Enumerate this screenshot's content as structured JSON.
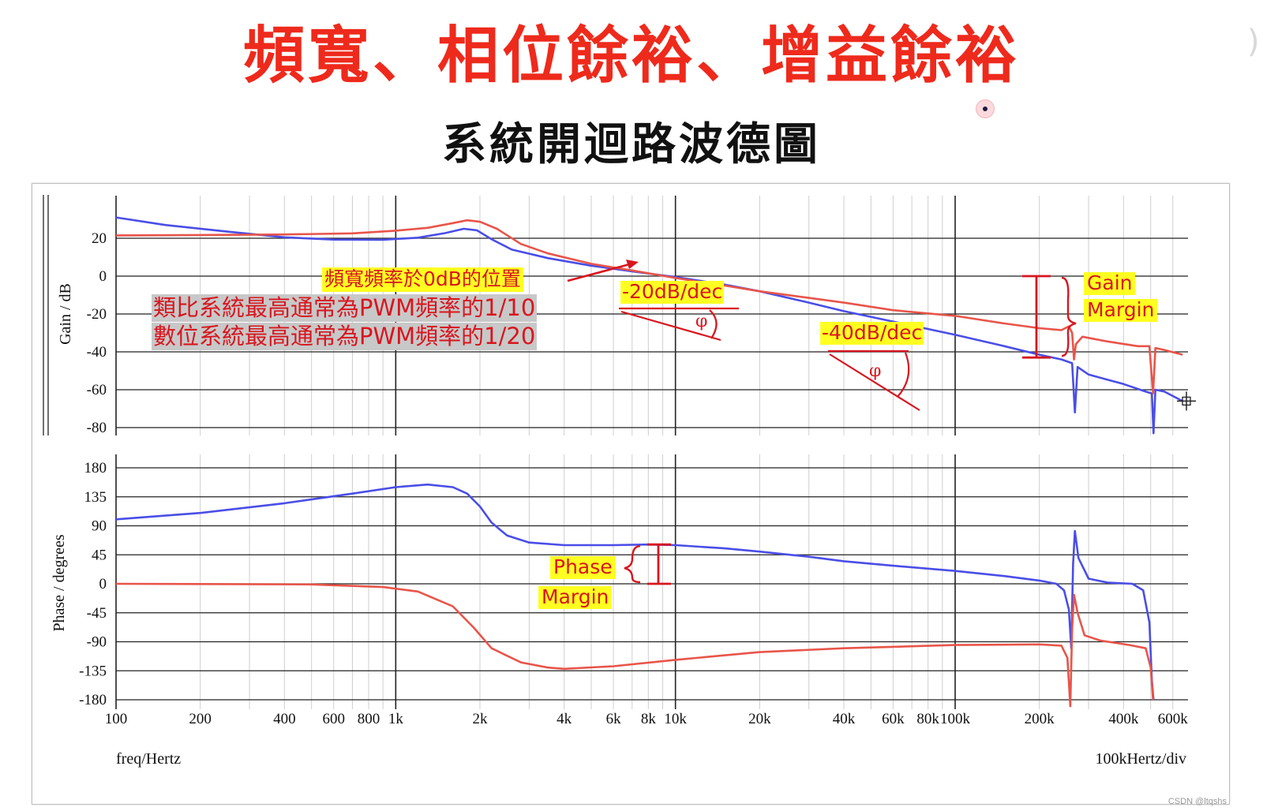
{
  "header": {
    "title": "頻寬、相位餘裕、增益餘裕",
    "subtitle": "系統開迴路波德圖"
  },
  "colors": {
    "title": "#ee2a1c",
    "blue_series": "#4a4ee6",
    "red_series": "#e8554a",
    "annotation": "#d8161f",
    "highlight": "#ffff22"
  },
  "annotations": {
    "bandwidth": "頻寬頻率於0dB的位置",
    "analog_note": "類比系統最高通常為PWM頻率的1/10",
    "digital_note": "數位系統最高通常為PWM頻率的1/20",
    "slope_20": "-20dB/dec",
    "slope_40": "-40dB/dec",
    "phi": "φ",
    "gain_margin_1": "Gain",
    "gain_margin_2": "Margin",
    "phase_margin_1": "Phase",
    "phase_margin_2": "Margin"
  },
  "footer": {
    "freq_label": "freq/Hertz",
    "div_label": "100kHertz/div"
  },
  "watermark": "CSDN @ltqshs",
  "chart_data": [
    {
      "type": "line",
      "panel": "gain",
      "ylabel": "Gain / dB",
      "ylim": [
        -80,
        30
      ],
      "y_ticks": [
        20,
        0,
        -20,
        -40,
        -60,
        -80
      ],
      "x_scale": "log",
      "xlim": [
        100,
        680000
      ],
      "series": [
        {
          "color": "blue",
          "points": [
            [
              100,
              31
            ],
            [
              150,
              27
            ],
            [
              250,
              23.5
            ],
            [
              400,
              20.5
            ],
            [
              600,
              19.3
            ],
            [
              900,
              19.2
            ],
            [
              1200,
              20.3
            ],
            [
              1500,
              22.7
            ],
            [
              1750,
              25
            ],
            [
              1950,
              24.2
            ],
            [
              2200,
              19.5
            ],
            [
              2600,
              14
            ],
            [
              3500,
              9.5
            ],
            [
              5000,
              5.5
            ],
            [
              7000,
              2.5
            ],
            [
              10000,
              -0.5
            ],
            [
              15000,
              -4.5
            ],
            [
              20000,
              -8
            ],
            [
              30000,
              -14
            ],
            [
              40000,
              -18.5
            ],
            [
              60000,
              -24
            ],
            [
              100000,
              -31
            ],
            [
              150000,
              -37
            ],
            [
              200000,
              -41.5
            ],
            [
              240000,
              -44
            ],
            [
              262000,
              -46
            ],
            [
              268000,
              -72
            ],
            [
              274000,
              -48
            ],
            [
              300000,
              -52
            ],
            [
              400000,
              -57
            ],
            [
              480000,
              -61
            ],
            [
              505000,
              -62
            ],
            [
              512000,
              -83
            ],
            [
              520000,
              -60
            ],
            [
              560000,
              -61
            ],
            [
              650000,
              -66
            ]
          ]
        },
        {
          "color": "red",
          "points": [
            [
              100,
              21.5
            ],
            [
              200,
              21.7
            ],
            [
              400,
              22
            ],
            [
              700,
              22.6
            ],
            [
              1000,
              24
            ],
            [
              1300,
              25.5
            ],
            [
              1600,
              28
            ],
            [
              1800,
              29.5
            ],
            [
              2000,
              28.7
            ],
            [
              2300,
              25
            ],
            [
              2800,
              17
            ],
            [
              3500,
              12
            ],
            [
              5000,
              6.5
            ],
            [
              7000,
              3
            ],
            [
              10000,
              -1
            ],
            [
              15000,
              -5
            ],
            [
              20000,
              -8
            ],
            [
              30000,
              -11.5
            ],
            [
              40000,
              -14
            ],
            [
              60000,
              -18
            ],
            [
              100000,
              -21
            ],
            [
              150000,
              -25
            ],
            [
              200000,
              -27.5
            ],
            [
              240000,
              -28.5
            ],
            [
              255000,
              -26.5
            ],
            [
              262000,
              -30
            ],
            [
              266000,
              -44
            ],
            [
              270000,
              -36
            ],
            [
              285000,
              -32
            ],
            [
              350000,
              -34.5
            ],
            [
              450000,
              -37
            ],
            [
              495000,
              -37
            ],
            [
              510000,
              -62
            ],
            [
              520000,
              -38
            ],
            [
              560000,
              -39
            ],
            [
              650000,
              -41.5
            ]
          ]
        }
      ]
    },
    {
      "type": "line",
      "panel": "phase",
      "ylabel": "Phase / degrees",
      "ylim": [
        -180,
        180
      ],
      "y_ticks": [
        180,
        135,
        90,
        45,
        0,
        -45,
        -90,
        -135,
        -180
      ],
      "x_scale": "log",
      "xlim": [
        100,
        680000
      ],
      "x_tick_labels": [
        "100",
        "200",
        "400",
        "600",
        "800",
        "1k",
        "2k",
        "4k",
        "6k",
        "8k",
        "10k",
        "20k",
        "40k",
        "60k",
        "80k",
        "100k",
        "200k",
        "400k",
        "600k"
      ],
      "x_tick_values": [
        100,
        200,
        400,
        600,
        800,
        1000,
        2000,
        4000,
        6000,
        8000,
        10000,
        20000,
        40000,
        60000,
        80000,
        100000,
        200000,
        400000,
        600000
      ],
      "series": [
        {
          "color": "blue",
          "points": [
            [
              100,
              100
            ],
            [
              200,
              110
            ],
            [
              400,
              125
            ],
            [
              700,
              140
            ],
            [
              1000,
              150
            ],
            [
              1300,
              154
            ],
            [
              1600,
              150
            ],
            [
              1800,
              140
            ],
            [
              2000,
              120
            ],
            [
              2200,
              95
            ],
            [
              2500,
              75
            ],
            [
              3000,
              64
            ],
            [
              4000,
              60
            ],
            [
              6000,
              60
            ],
            [
              8000,
              61
            ],
            [
              10000,
              60
            ],
            [
              15000,
              55
            ],
            [
              20000,
              50
            ],
            [
              30000,
              42
            ],
            [
              40000,
              35
            ],
            [
              60000,
              28
            ],
            [
              100000,
              20
            ],
            [
              150000,
              12
            ],
            [
              200000,
              5
            ],
            [
              230000,
              0
            ],
            [
              245000,
              -10
            ],
            [
              255000,
              -40
            ],
            [
              260000,
              -100
            ],
            [
              264000,
              30
            ],
            [
              268000,
              82
            ],
            [
              276000,
              40
            ],
            [
              300000,
              8
            ],
            [
              350000,
              2
            ],
            [
              430000,
              0
            ],
            [
              470000,
              -10
            ],
            [
              495000,
              -60
            ],
            [
              505000,
              -150
            ],
            [
              512000,
              -180
            ]
          ]
        },
        {
          "color": "red",
          "points": [
            [
              100,
              0
            ],
            [
              500,
              -1
            ],
            [
              900,
              -5
            ],
            [
              1200,
              -12
            ],
            [
              1600,
              -35
            ],
            [
              1900,
              -68
            ],
            [
              2200,
              -100
            ],
            [
              2800,
              -122
            ],
            [
              3500,
              -130
            ],
            [
              4000,
              -132
            ],
            [
              6000,
              -128
            ],
            [
              10000,
              -118
            ],
            [
              20000,
              -106
            ],
            [
              40000,
              -100
            ],
            [
              100000,
              -95
            ],
            [
              200000,
              -94
            ],
            [
              240000,
              -96
            ],
            [
              252000,
              -115
            ],
            [
              258000,
              -190
            ],
            [
              262000,
              -70
            ],
            [
              266000,
              -17
            ],
            [
              274000,
              -45
            ],
            [
              290000,
              -80
            ],
            [
              330000,
              -88
            ],
            [
              420000,
              -95
            ],
            [
              480000,
              -100
            ],
            [
              500000,
              -130
            ],
            [
              510000,
              -180
            ]
          ]
        }
      ]
    }
  ]
}
